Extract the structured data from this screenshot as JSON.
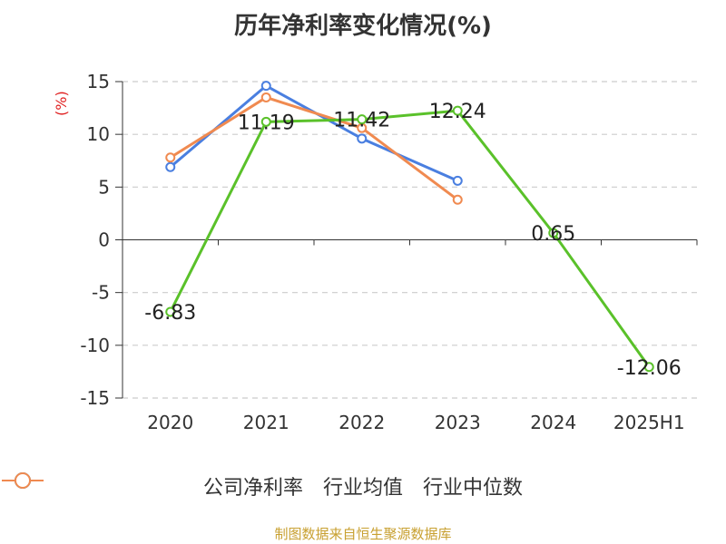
{
  "chart_data": {
    "type": "line",
    "title": "历年净利率变化情况(%)",
    "ylabel": "(%)",
    "xlabel": "",
    "categories": [
      "2020",
      "2021",
      "2022",
      "2023",
      "2024",
      "2025H1"
    ],
    "ylim": [
      -15,
      15
    ],
    "yticks": [
      "15",
      "10",
      "5",
      "0",
      "-5",
      "-10",
      "-15"
    ],
    "grid": true,
    "legend_position": "bottom",
    "series": [
      {
        "name": "公司净利率",
        "color": "#5ac12a",
        "values": [
          -6.83,
          11.19,
          11.42,
          12.24,
          0.65,
          -12.06
        ],
        "labels": [
          "-6.83",
          "11.19",
          "11.42",
          "12.24",
          "0.65",
          "-12.06"
        ]
      },
      {
        "name": "行业均值",
        "color": "#4a7fe0",
        "values": [
          6.9,
          14.6,
          9.6,
          5.6,
          null,
          null
        ]
      },
      {
        "name": "行业中位数",
        "color": "#f08a50",
        "values": [
          7.8,
          13.5,
          10.6,
          3.8,
          null,
          null
        ]
      }
    ]
  },
  "source": "制图数据来自恒生聚源数据库"
}
